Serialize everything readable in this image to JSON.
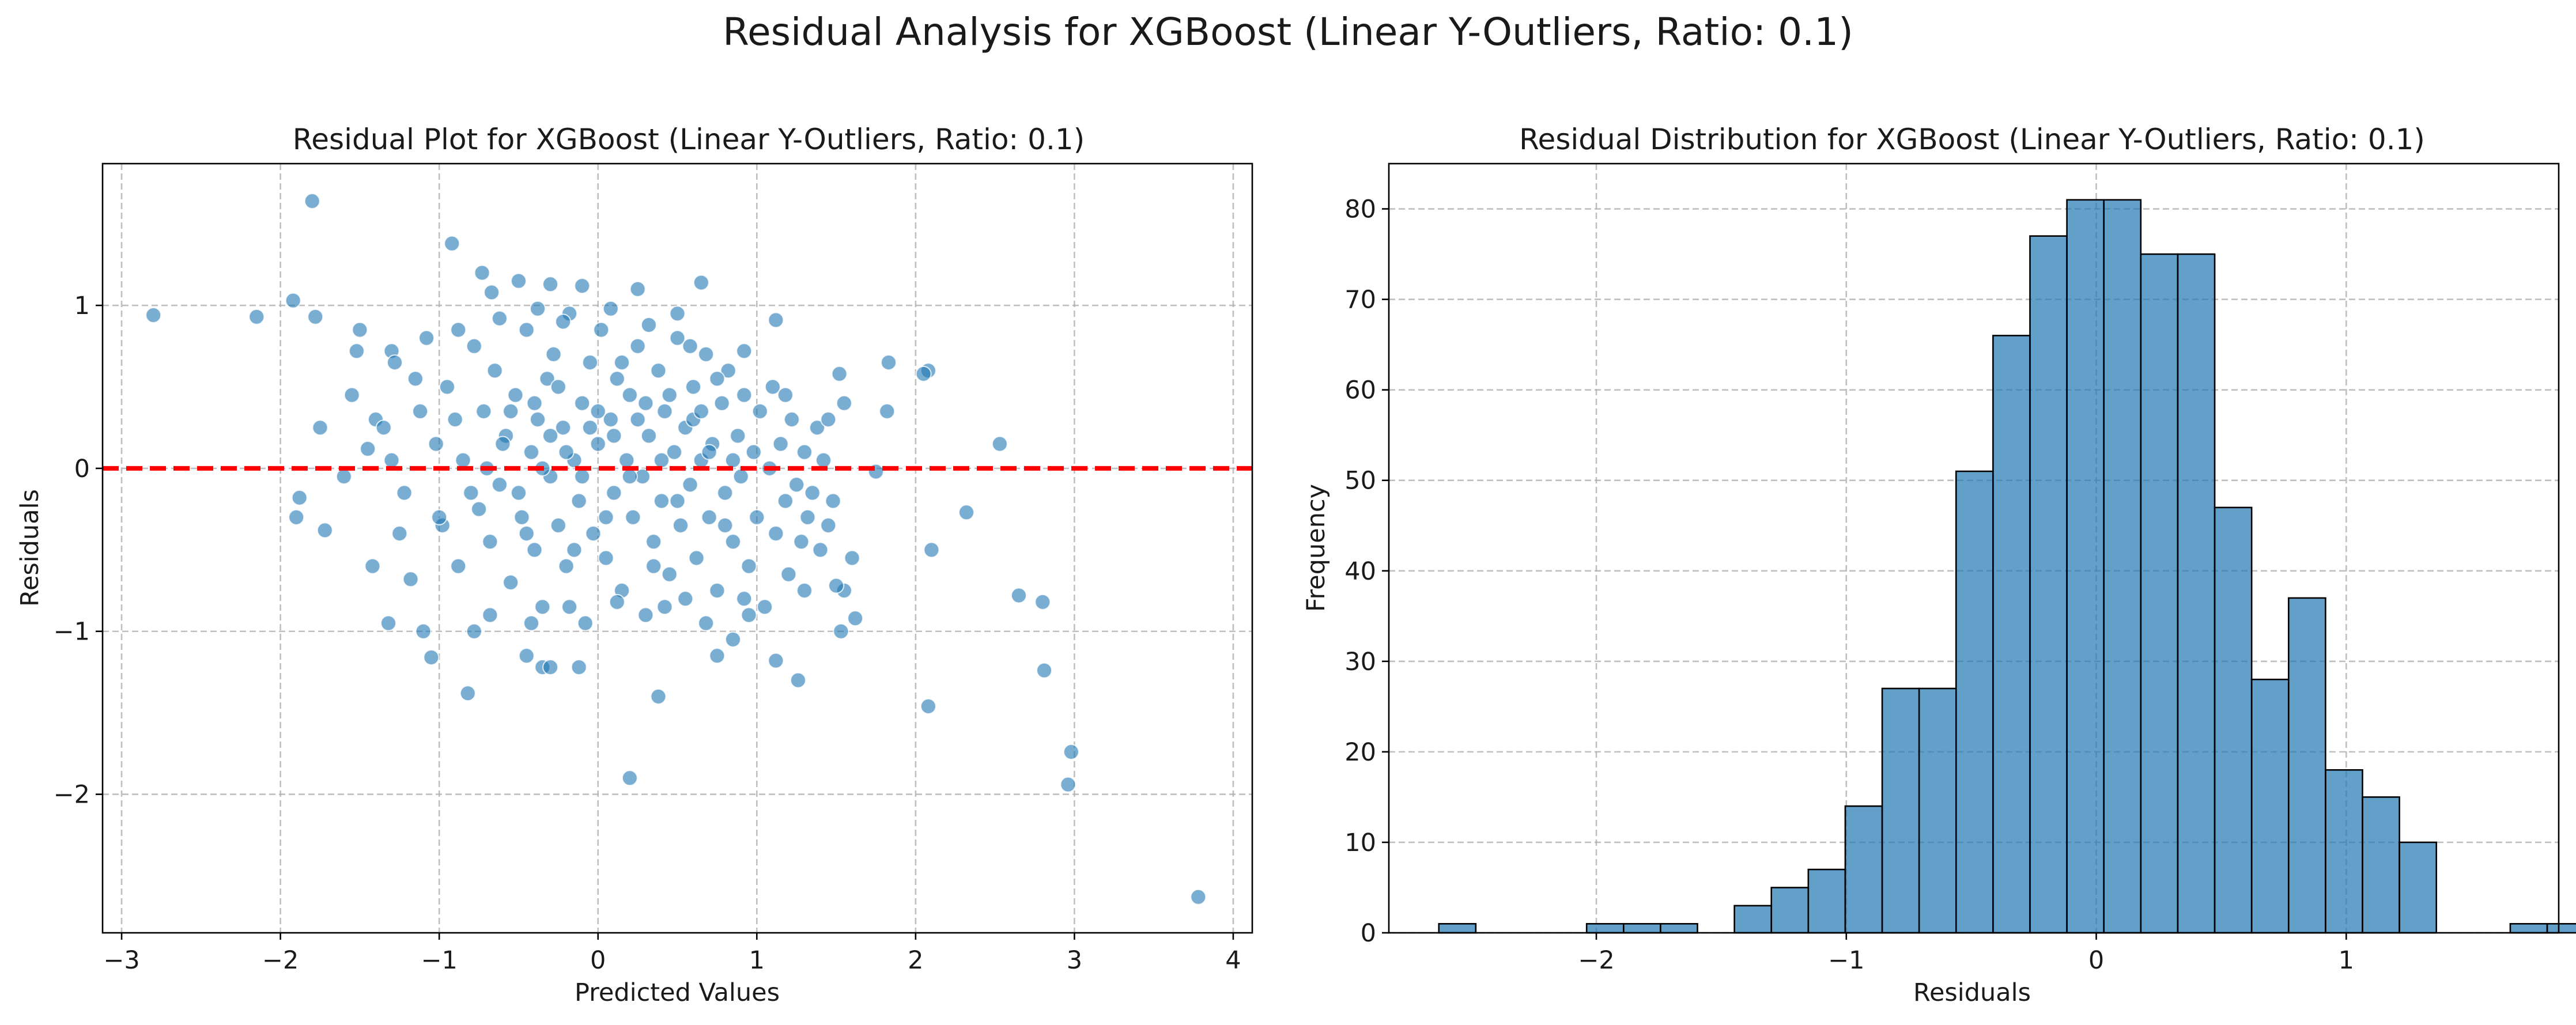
{
  "figure": {
    "suptitle": "Residual Analysis for XGBoost (Linear Y-Outliers, Ratio: 0.1)"
  },
  "colors": {
    "points": "#1f77b4",
    "bars": "#1f77b4",
    "zero_line": "#ff0000"
  },
  "chart_data": [
    {
      "type": "scatter",
      "title": "Residual Plot for XGBoost (Linear Y-Outliers, Ratio: 0.1)",
      "xlabel": "Predicted Values",
      "ylabel": "Residuals",
      "xlim": [
        -3.12,
        4.12
      ],
      "ylim": [
        -2.85,
        1.87
      ],
      "xticks": [
        -3,
        -2,
        -1,
        0,
        1,
        2,
        3,
        4
      ],
      "yticks": [
        -2,
        -1,
        0,
        1
      ],
      "xtick_labels": [
        "−3",
        "−2",
        "−1",
        "0",
        "1",
        "2",
        "3",
        "4"
      ],
      "ytick_labels": [
        "−2",
        "−1",
        "0",
        "1"
      ],
      "grid": true,
      "reference_line": {
        "y": 0,
        "style": "dashed"
      },
      "points": [
        [
          -2.8,
          0.94
        ],
        [
          -2.15,
          0.93
        ],
        [
          -1.92,
          1.03
        ],
        [
          -1.8,
          1.64
        ],
        [
          -1.78,
          0.93
        ],
        [
          -1.88,
          -0.18
        ],
        [
          -1.9,
          -0.3
        ],
        [
          -1.72,
          -0.38
        ],
        [
          -1.75,
          0.25
        ],
        [
          -1.5,
          0.85
        ],
        [
          -1.52,
          0.72
        ],
        [
          -1.3,
          0.72
        ],
        [
          -1.28,
          0.65
        ],
        [
          -1.3,
          0.05
        ],
        [
          -1.32,
          -0.95
        ],
        [
          -1.42,
          -0.6
        ],
        [
          -1.18,
          -0.68
        ],
        [
          -1.1,
          -1.0
        ],
        [
          -1.05,
          -1.16
        ],
        [
          -0.82,
          -1.38
        ],
        [
          -0.78,
          -1.0
        ],
        [
          -0.45,
          -1.15
        ],
        [
          -0.35,
          -1.22
        ],
        [
          -0.3,
          -1.22
        ],
        [
          -0.12,
          -1.22
        ],
        [
          0.2,
          -1.9
        ],
        [
          0.38,
          -1.4
        ],
        [
          0.75,
          -1.15
        ],
        [
          0.85,
          -1.05
        ],
        [
          1.12,
          -1.18
        ],
        [
          1.26,
          -1.3
        ],
        [
          1.53,
          -1.0
        ],
        [
          1.62,
          -0.92
        ],
        [
          0.92,
          -0.8
        ],
        [
          -0.92,
          1.38
        ],
        [
          -0.73,
          1.2
        ],
        [
          -0.67,
          1.08
        ],
        [
          -0.5,
          1.15
        ],
        [
          -0.3,
          1.13
        ],
        [
          -0.1,
          1.12
        ],
        [
          0.25,
          1.1
        ],
        [
          0.65,
          1.14
        ],
        [
          1.12,
          0.91
        ],
        [
          0.5,
          0.95
        ],
        [
          2.08,
          0.6
        ],
        [
          2.05,
          0.58
        ],
        [
          1.83,
          0.65
        ],
        [
          1.52,
          0.58
        ],
        [
          1.82,
          0.35
        ],
        [
          2.53,
          0.15
        ],
        [
          1.75,
          -0.02
        ],
        [
          2.32,
          -0.27
        ],
        [
          2.1,
          -0.5
        ],
        [
          2.08,
          -1.46
        ],
        [
          2.65,
          -0.78
        ],
        [
          2.8,
          -0.82
        ],
        [
          2.81,
          -1.24
        ],
        [
          2.98,
          -1.74
        ],
        [
          2.96,
          -1.94
        ],
        [
          3.78,
          -2.63
        ],
        [
          1.6,
          -0.55
        ],
        [
          1.55,
          -0.75
        ],
        [
          1.48,
          -0.2
        ],
        [
          1.38,
          0.25
        ],
        [
          -1.6,
          -0.05
        ],
        [
          -1.55,
          0.45
        ],
        [
          -1.45,
          0.12
        ],
        [
          -1.4,
          0.3
        ],
        [
          -1.22,
          -0.15
        ],
        [
          -1.15,
          0.55
        ],
        [
          -1.08,
          0.8
        ],
        [
          -1.02,
          0.15
        ],
        [
          -0.98,
          -0.35
        ],
        [
          -0.95,
          0.5
        ],
        [
          -0.88,
          -0.6
        ],
        [
          -0.85,
          0.05
        ],
        [
          -0.78,
          0.75
        ],
        [
          -0.75,
          -0.25
        ],
        [
          -0.72,
          0.35
        ],
        [
          -0.68,
          -0.45
        ],
        [
          -0.65,
          0.6
        ],
        [
          -0.62,
          -0.1
        ],
        [
          -0.58,
          0.2
        ],
        [
          -0.55,
          -0.7
        ],
        [
          -0.52,
          0.45
        ],
        [
          -0.48,
          -0.3
        ],
        [
          -0.45,
          0.85
        ],
        [
          -0.42,
          0.1
        ],
        [
          -0.4,
          -0.5
        ],
        [
          -0.38,
          0.3
        ],
        [
          -0.35,
          -0.85
        ],
        [
          -0.32,
          0.55
        ],
        [
          -0.3,
          -0.05
        ],
        [
          -0.28,
          0.7
        ],
        [
          -0.25,
          -0.35
        ],
        [
          -0.22,
          0.25
        ],
        [
          -0.2,
          -0.6
        ],
        [
          -0.18,
          0.95
        ],
        [
          -0.15,
          0.05
        ],
        [
          -0.12,
          -0.2
        ],
        [
          -0.1,
          0.4
        ],
        [
          -0.08,
          -0.95
        ],
        [
          -0.05,
          0.65
        ],
        [
          -0.03,
          -0.4
        ],
        [
          0.0,
          0.15
        ],
        [
          0.02,
          0.85
        ],
        [
          0.05,
          -0.55
        ],
        [
          0.08,
          0.3
        ],
        [
          0.1,
          -0.15
        ],
        [
          0.12,
          0.55
        ],
        [
          0.15,
          -0.75
        ],
        [
          0.18,
          0.05
        ],
        [
          0.2,
          0.45
        ],
        [
          0.22,
          -0.3
        ],
        [
          0.25,
          0.75
        ],
        [
          0.28,
          -0.05
        ],
        [
          0.3,
          -0.9
        ],
        [
          0.32,
          0.2
        ],
        [
          0.35,
          -0.45
        ],
        [
          0.38,
          0.6
        ],
        [
          0.4,
          -0.2
        ],
        [
          0.42,
          0.35
        ],
        [
          0.45,
          -0.65
        ],
        [
          0.48,
          0.1
        ],
        [
          0.5,
          0.8
        ],
        [
          0.52,
          -0.35
        ],
        [
          0.55,
          0.25
        ],
        [
          0.58,
          -0.1
        ],
        [
          0.6,
          0.5
        ],
        [
          0.62,
          -0.55
        ],
        [
          0.65,
          0.05
        ],
        [
          0.68,
          0.7
        ],
        [
          0.7,
          -0.3
        ],
        [
          0.72,
          0.15
        ],
        [
          0.75,
          -0.75
        ],
        [
          0.78,
          0.4
        ],
        [
          0.8,
          -0.15
        ],
        [
          0.82,
          0.6
        ],
        [
          0.85,
          -0.45
        ],
        [
          0.88,
          0.2
        ],
        [
          0.9,
          -0.05
        ],
        [
          0.92,
          0.45
        ],
        [
          0.95,
          -0.6
        ],
        [
          0.98,
          0.1
        ],
        [
          1.0,
          -0.3
        ],
        [
          1.02,
          0.35
        ],
        [
          1.05,
          -0.85
        ],
        [
          1.08,
          0.0
        ],
        [
          1.1,
          0.5
        ],
        [
          1.12,
          -0.4
        ],
        [
          1.15,
          0.15
        ],
        [
          1.18,
          -0.2
        ],
        [
          1.2,
          -0.65
        ],
        [
          1.22,
          0.3
        ],
        [
          1.25,
          -0.1
        ],
        [
          1.28,
          -0.45
        ],
        [
          1.3,
          0.1
        ],
        [
          1.32,
          -0.3
        ],
        [
          1.35,
          -0.15
        ],
        [
          1.4,
          -0.5
        ],
        [
          1.42,
          0.05
        ],
        [
          1.45,
          -0.35
        ],
        [
          1.5,
          -0.72
        ],
        [
          1.55,
          0.4
        ],
        [
          -0.6,
          0.15
        ],
        [
          -0.5,
          -0.15
        ],
        [
          -0.4,
          0.4
        ],
        [
          -0.3,
          0.2
        ],
        [
          -0.2,
          0.1
        ],
        [
          -0.1,
          -0.05
        ],
        [
          0.0,
          0.35
        ],
        [
          0.1,
          0.2
        ],
        [
          0.2,
          -0.05
        ],
        [
          0.3,
          0.4
        ],
        [
          0.4,
          0.05
        ],
        [
          0.5,
          -0.2
        ],
        [
          0.6,
          0.3
        ],
        [
          0.7,
          0.1
        ],
        [
          0.8,
          -0.35
        ],
        [
          -0.55,
          0.35
        ],
        [
          -0.45,
          -0.4
        ],
        [
          -0.35,
          0.0
        ],
        [
          -0.25,
          0.5
        ],
        [
          -0.15,
          -0.5
        ],
        [
          -0.05,
          0.25
        ],
        [
          0.05,
          -0.3
        ],
        [
          0.15,
          0.65
        ],
        [
          0.25,
          0.3
        ],
        [
          0.35,
          -0.6
        ],
        [
          0.45,
          0.45
        ],
        [
          0.55,
          -0.8
        ],
        [
          0.65,
          0.35
        ],
        [
          0.75,
          0.55
        ],
        [
          0.85,
          0.05
        ],
        [
          -0.9,
          0.3
        ],
        [
          -0.8,
          -0.15
        ],
        [
          -0.7,
          0.0
        ],
        [
          -1.0,
          -0.3
        ],
        [
          -1.12,
          0.35
        ],
        [
          -0.88,
          0.85
        ],
        [
          -0.62,
          0.92
        ],
        [
          -0.38,
          0.98
        ],
        [
          -0.22,
          0.9
        ],
        [
          0.08,
          0.98
        ],
        [
          0.32,
          0.88
        ],
        [
          0.58,
          0.75
        ],
        [
          0.92,
          0.72
        ],
        [
          1.18,
          0.45
        ],
        [
          1.45,
          0.3
        ],
        [
          -0.68,
          -0.9
        ],
        [
          -0.42,
          -0.95
        ],
        [
          -0.18,
          -0.85
        ],
        [
          0.12,
          -0.82
        ],
        [
          0.42,
          -0.85
        ],
        [
          0.68,
          -0.95
        ],
        [
          0.95,
          -0.9
        ],
        [
          1.3,
          -0.75
        ],
        [
          -1.25,
          -0.4
        ],
        [
          -1.35,
          0.25
        ]
      ]
    },
    {
      "type": "bar",
      "title": "Residual Distribution for XGBoost (Linear Y-Outliers, Ratio: 0.1)",
      "xlabel": "Residuals",
      "ylabel": "Frequency",
      "xlim": [
        -2.83,
        1.85
      ],
      "ylim": [
        0,
        85
      ],
      "xticks": [
        -2,
        -1,
        0,
        1
      ],
      "yticks": [
        0,
        10,
        20,
        30,
        40,
        50,
        60,
        70,
        80
      ],
      "xtick_labels": [
        "−2",
        "−1",
        "0",
        "1"
      ],
      "ytick_labels": [
        "0",
        "10",
        "20",
        "30",
        "40",
        "50",
        "60",
        "70",
        "80"
      ],
      "grid": true,
      "bin_start": -2.63,
      "bin_width": 0.1478,
      "values": [
        1,
        0,
        0,
        0,
        1,
        1,
        1,
        0,
        3,
        5,
        7,
        14,
        27,
        27,
        51,
        66,
        77,
        81,
        81,
        75,
        75,
        47,
        28,
        37,
        18,
        15,
        10,
        0,
        0,
        1,
        1
      ]
    }
  ]
}
